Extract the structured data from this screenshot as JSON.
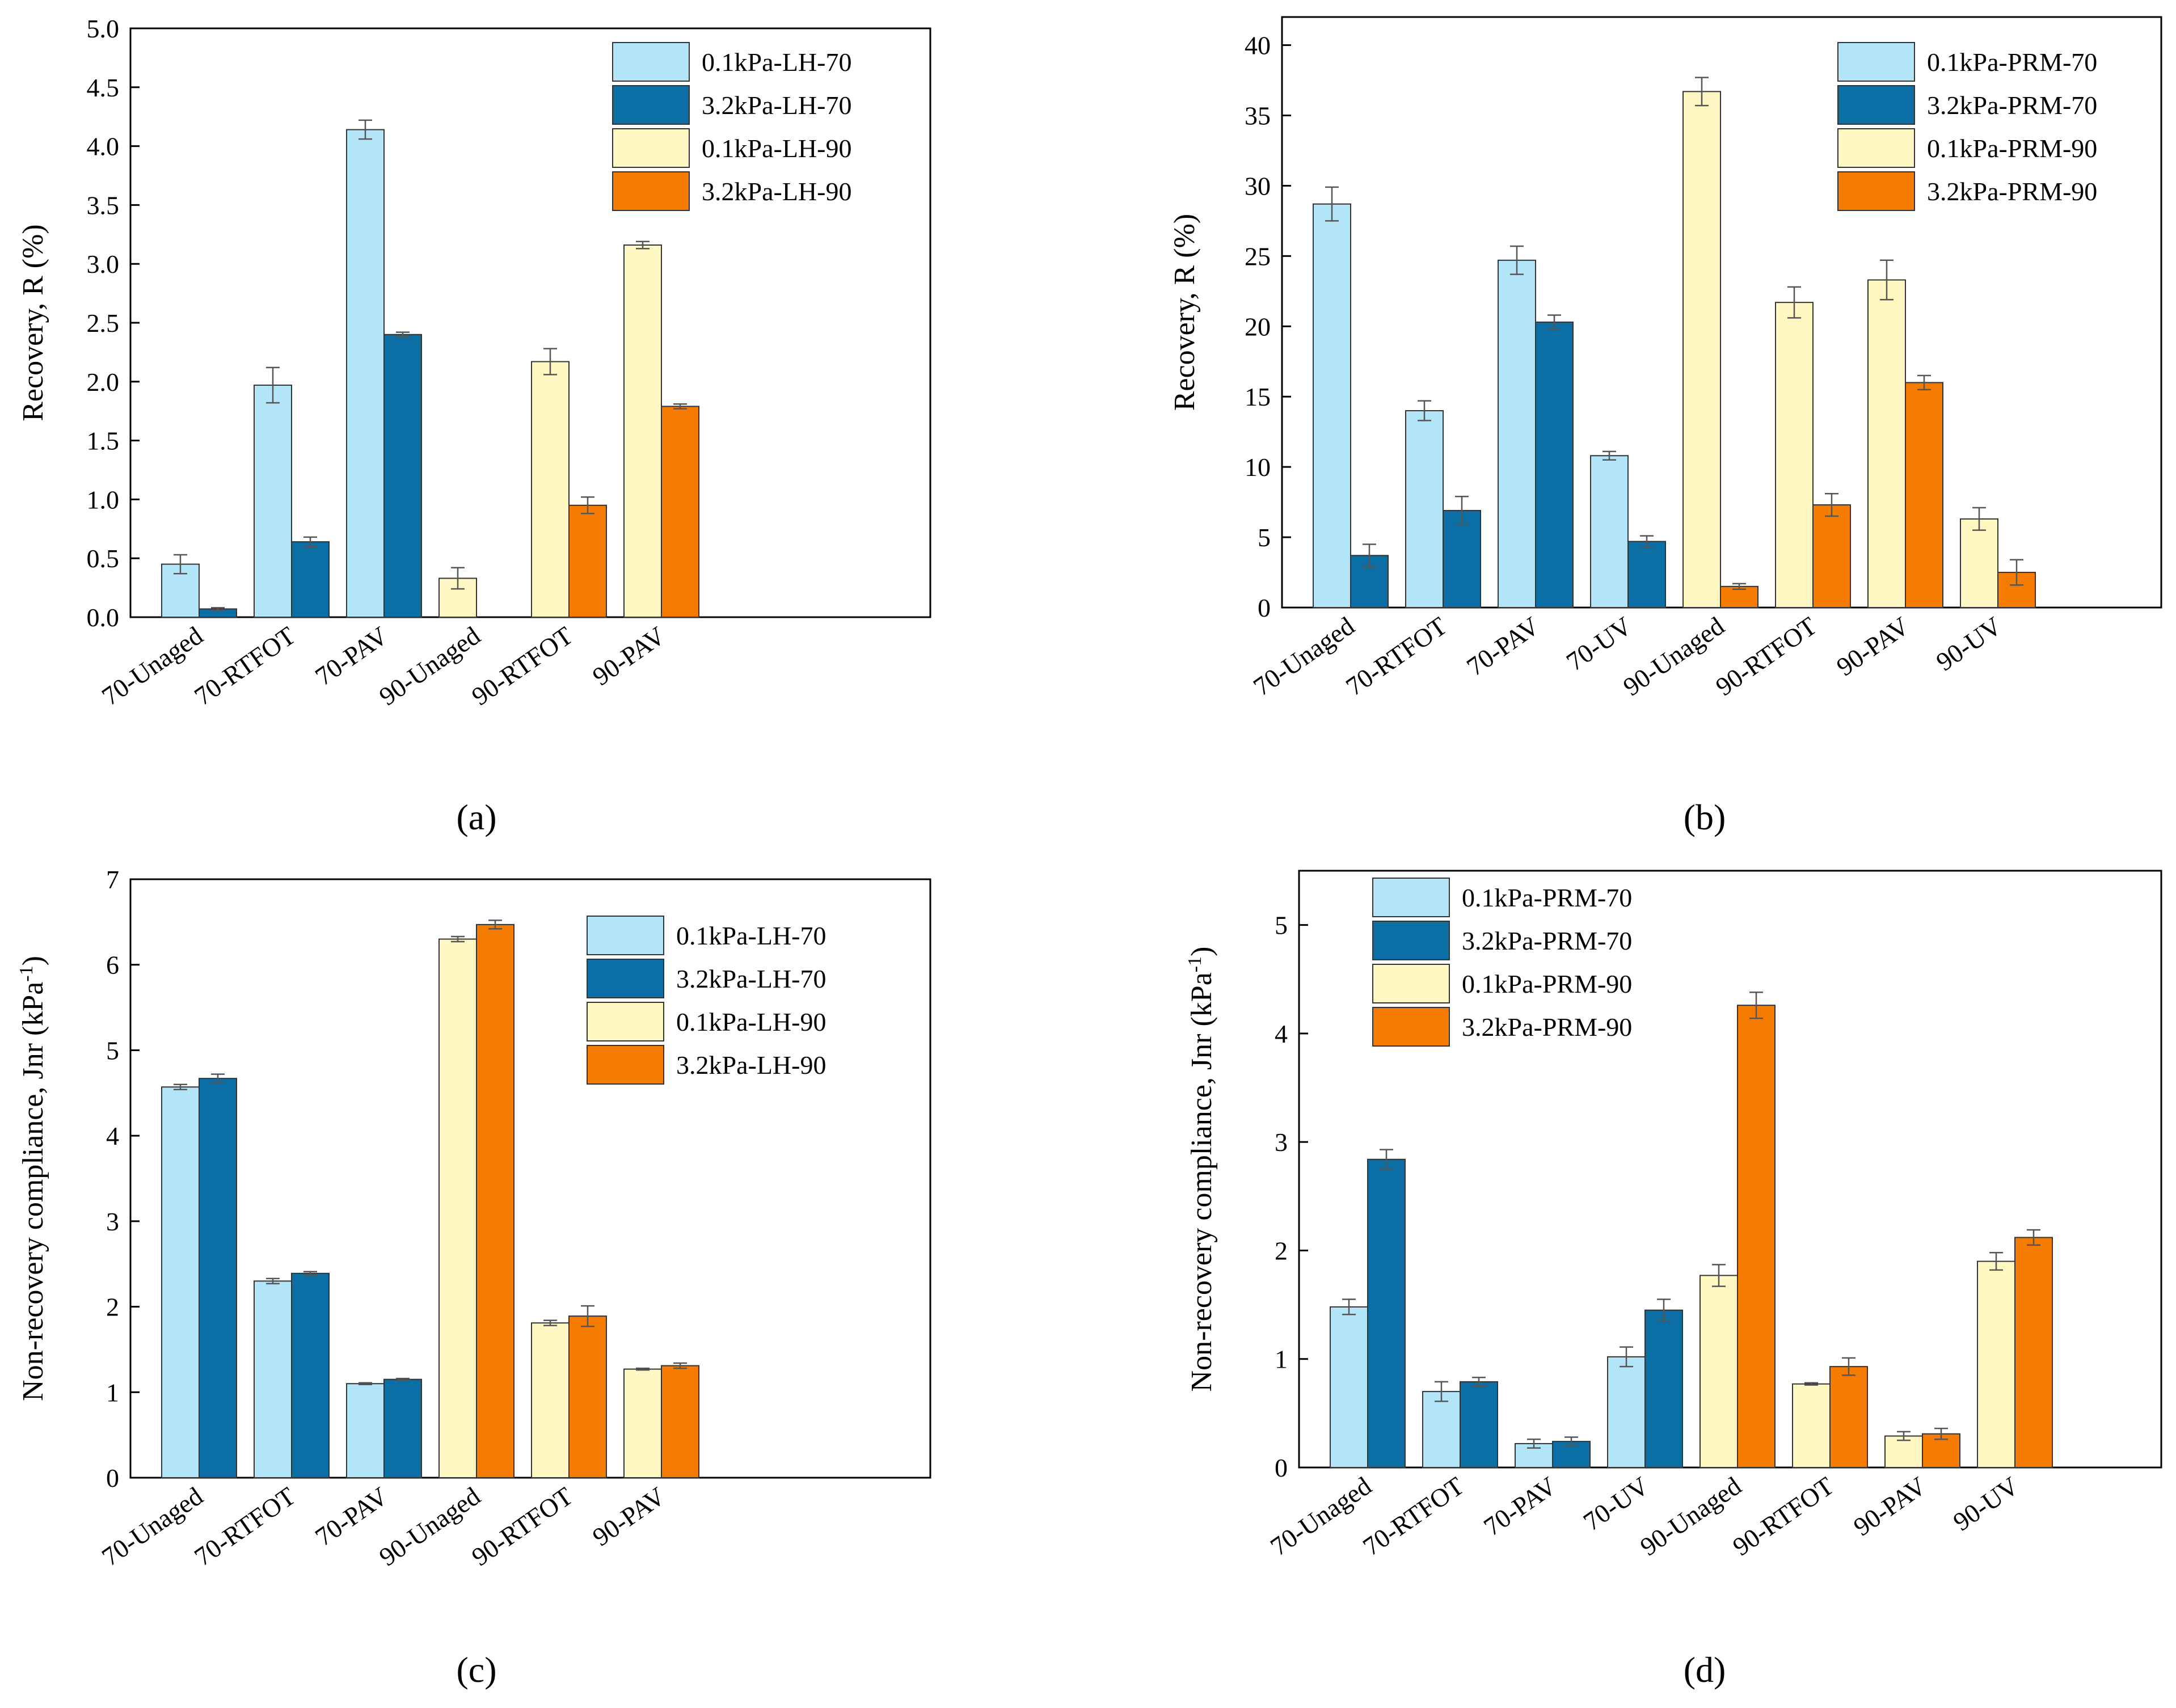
{
  "colors": {
    "light_blue": "#b3e5f8",
    "dark_blue": "#0b6ea4",
    "light_yellow": "#fff8c2",
    "orange": "#f57c00",
    "axis": "#000000",
    "error_bar": "#555555"
  },
  "chart_data": [
    {
      "id": "a",
      "type": "bar",
      "panel_label": "(a)",
      "ylabel": "Recovery, R (%)",
      "ylim": [
        0,
        5.0
      ],
      "yticks": [
        "0.0",
        "0.5",
        "1.0",
        "1.5",
        "2.0",
        "2.5",
        "3.0",
        "3.5",
        "4.0",
        "4.5",
        "5.0"
      ],
      "categories": [
        "70-Unaged",
        "70-RTFOT",
        "70-PAV",
        "90-Unaged",
        "90-RTFOT",
        "90-PAV"
      ],
      "slots": 8,
      "legend_position": "top-right",
      "series": [
        {
          "name": "0.1kPa-LH-70",
          "color": "light_blue",
          "values": [
            0.45,
            1.97,
            4.14,
            null,
            null,
            null
          ],
          "errors": [
            0.08,
            0.15,
            0.08,
            null,
            null,
            null
          ]
        },
        {
          "name": "3.2kPa-LH-70",
          "color": "dark_blue",
          "values": [
            0.07,
            0.64,
            2.4,
            null,
            null,
            null
          ],
          "errors": [
            0.01,
            0.04,
            0.02,
            null,
            null,
            null
          ]
        },
        {
          "name": "0.1kPa-LH-90",
          "color": "light_yellow",
          "values": [
            null,
            null,
            null,
            0.33,
            2.17,
            3.16
          ],
          "errors": [
            null,
            null,
            null,
            0.09,
            0.11,
            0.03
          ]
        },
        {
          "name": "3.2kPa-LH-90",
          "color": "orange",
          "values": [
            null,
            null,
            null,
            0.0,
            0.95,
            1.79
          ],
          "errors": [
            null,
            null,
            null,
            0.0,
            0.07,
            0.02
          ]
        }
      ]
    },
    {
      "id": "b",
      "type": "bar",
      "panel_label": "(b)",
      "ylabel": "Recovery, R (%)",
      "ylim": [
        0,
        42
      ],
      "yticks": [
        "0",
        "5",
        "10",
        "15",
        "20",
        "25",
        "30",
        "35",
        "40"
      ],
      "ytick_max": 40,
      "categories": [
        "70-Unaged",
        "70-RTFOT",
        "70-PAV",
        "70-UV",
        "90-Unaged",
        "90-RTFOT",
        "90-PAV",
        "90-UV"
      ],
      "slots": 8,
      "legend_position": "top-right",
      "series": [
        {
          "name": "0.1kPa-PRM-70",
          "color": "light_blue",
          "values": [
            28.7,
            14.0,
            24.7,
            10.8,
            null,
            null,
            null,
            null
          ],
          "errors": [
            1.2,
            0.7,
            1.0,
            0.3,
            null,
            null,
            null,
            null
          ]
        },
        {
          "name": "3.2kPa-PRM-70",
          "color": "dark_blue",
          "values": [
            3.7,
            6.9,
            20.3,
            4.7,
            null,
            null,
            null,
            null
          ],
          "errors": [
            0.8,
            1.0,
            0.5,
            0.4,
            null,
            null,
            null,
            null
          ]
        },
        {
          "name": "0.1kPa-PRM-90",
          "color": "light_yellow",
          "values": [
            null,
            null,
            null,
            null,
            36.7,
            21.7,
            23.3,
            6.3
          ],
          "errors": [
            null,
            null,
            null,
            null,
            1.0,
            1.1,
            1.4,
            0.8
          ]
        },
        {
          "name": "3.2kPa-PRM-90",
          "color": "orange",
          "values": [
            null,
            null,
            null,
            null,
            1.5,
            7.3,
            16.0,
            2.5
          ],
          "errors": [
            null,
            null,
            null,
            null,
            0.2,
            0.8,
            0.5,
            0.9
          ]
        }
      ]
    },
    {
      "id": "c",
      "type": "bar",
      "panel_label": "(c)",
      "ylabel": "Non-recovery compliance, Jnr (kPa",
      "ylabel_sup": "-1",
      "ylabel_close": ")",
      "ylim": [
        0,
        7
      ],
      "yticks": [
        "0",
        "1",
        "2",
        "3",
        "4",
        "5",
        "6",
        "7"
      ],
      "categories": [
        "70-Unaged",
        "70-RTFOT",
        "70-PAV",
        "90-Unaged",
        "90-RTFOT",
        "90-PAV"
      ],
      "slots": 8,
      "legend_position": "top-right",
      "series": [
        {
          "name": "0.1kPa-LH-70",
          "color": "light_blue",
          "values": [
            4.57,
            2.3,
            1.1,
            null,
            null,
            null
          ],
          "errors": [
            0.03,
            0.03,
            0.01,
            null,
            null,
            null
          ]
        },
        {
          "name": "3.2kPa-LH-70",
          "color": "dark_blue",
          "values": [
            4.67,
            2.39,
            1.15,
            null,
            null,
            null
          ],
          "errors": [
            0.05,
            0.02,
            0.01,
            null,
            null,
            null
          ]
        },
        {
          "name": "0.1kPa-LH-90",
          "color": "light_yellow",
          "values": [
            null,
            null,
            null,
            6.3,
            1.81,
            1.27
          ],
          "errors": [
            null,
            null,
            null,
            0.03,
            0.03,
            0.01
          ]
        },
        {
          "name": "3.2kPa-LH-90",
          "color": "orange",
          "values": [
            null,
            null,
            null,
            6.47,
            1.89,
            1.31
          ],
          "errors": [
            null,
            null,
            null,
            0.05,
            0.12,
            0.03
          ]
        }
      ]
    },
    {
      "id": "d",
      "type": "bar",
      "panel_label": "(d)",
      "ylabel": "Non-recovery compliance, Jnr (kPa",
      "ylabel_sup": "-1",
      "ylabel_close": ")",
      "ylim": [
        0,
        5.5
      ],
      "yticks": [
        "0",
        "1",
        "2",
        "3",
        "4",
        "5"
      ],
      "ytick_max": 5,
      "categories": [
        "70-Unaged",
        "70-RTFOT",
        "70-PAV",
        "70-UV",
        "90-Unaged",
        "90-RTFOT",
        "90-PAV",
        "90-UV"
      ],
      "slots": 8,
      "legend_position": "top-left",
      "series": [
        {
          "name": "0.1kPa-PRM-70",
          "color": "light_blue",
          "values": [
            1.48,
            0.7,
            0.22,
            1.02,
            null,
            null,
            null,
            null
          ],
          "errors": [
            0.07,
            0.09,
            0.04,
            0.09,
            null,
            null,
            null,
            null
          ]
        },
        {
          "name": "3.2kPa-PRM-70",
          "color": "dark_blue",
          "values": [
            2.84,
            0.79,
            0.24,
            1.45,
            null,
            null,
            null,
            null
          ],
          "errors": [
            0.09,
            0.04,
            0.04,
            0.1,
            null,
            null,
            null,
            null
          ]
        },
        {
          "name": "0.1kPa-PRM-90",
          "color": "light_yellow",
          "values": [
            null,
            null,
            null,
            null,
            1.77,
            0.77,
            0.29,
            1.9
          ],
          "errors": [
            null,
            null,
            null,
            null,
            0.1,
            0.01,
            0.04,
            0.08
          ]
        },
        {
          "name": "3.2kPa-PRM-90",
          "color": "orange",
          "values": [
            null,
            null,
            null,
            null,
            4.26,
            0.93,
            0.31,
            2.12
          ],
          "errors": [
            null,
            null,
            null,
            null,
            0.12,
            0.08,
            0.05,
            0.07
          ]
        }
      ]
    }
  ]
}
